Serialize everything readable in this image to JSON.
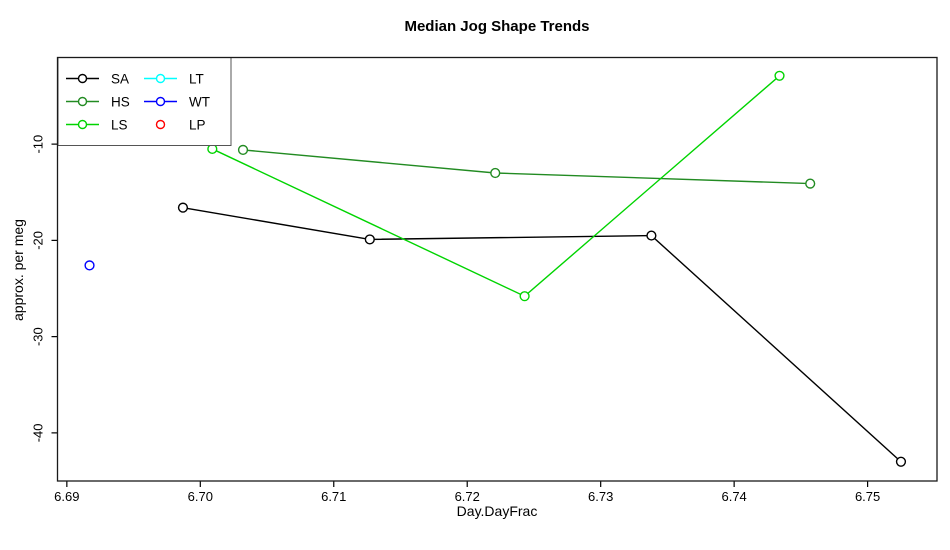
{
  "title": "Median Jog Shape Trends",
  "chart_data": {
    "type": "line",
    "title": "Median Jog Shape Trends",
    "xlabel": "Day.DayFrac",
    "ylabel": "approx. per meg",
    "xlim": [
      6.6893,
      6.7552
    ],
    "ylim": [
      -45,
      -1
    ],
    "grid": false,
    "legend_position": "topleft",
    "xticks": {
      "values": [
        6.69,
        6.7,
        6.71,
        6.72,
        6.73,
        6.74,
        6.75
      ],
      "labels": [
        "6.69",
        "6.70",
        "6.71",
        "6.72",
        "6.73",
        "6.74",
        "6.75"
      ]
    },
    "yticks": {
      "values": [
        -10,
        -20,
        -30,
        -40
      ],
      "labels": [
        "-10",
        "-20",
        "-30",
        "-40"
      ]
    },
    "series": [
      {
        "name": "SA",
        "color": "#000000",
        "line": true,
        "marker": "open-circle",
        "points": [
          [
            6.6987,
            -16.6
          ],
          [
            6.7127,
            -19.9
          ],
          [
            6.7338,
            -19.5
          ],
          [
            6.7525,
            -43.0
          ]
        ]
      },
      {
        "name": "HS",
        "color": "#228B22",
        "line": true,
        "marker": "open-circle",
        "points": [
          [
            6.7032,
            -10.6
          ],
          [
            6.7221,
            -13.0
          ],
          [
            6.7457,
            -14.1
          ]
        ]
      },
      {
        "name": "LS",
        "color": "#00D400",
        "line": true,
        "marker": "open-circle",
        "points": [
          [
            6.7009,
            -10.5
          ],
          [
            6.7243,
            -25.8
          ],
          [
            6.7434,
            -2.9
          ]
        ]
      },
      {
        "name": "LT",
        "color": "#00FFFF",
        "line": true,
        "marker": "open-circle",
        "points": []
      },
      {
        "name": "WT",
        "color": "#0000FF",
        "line": true,
        "marker": "open-circle",
        "points": [
          [
            6.6917,
            -22.6
          ]
        ]
      },
      {
        "name": "LP",
        "color": "#FF0000",
        "line": false,
        "marker": "open-circle",
        "points": []
      }
    ]
  }
}
